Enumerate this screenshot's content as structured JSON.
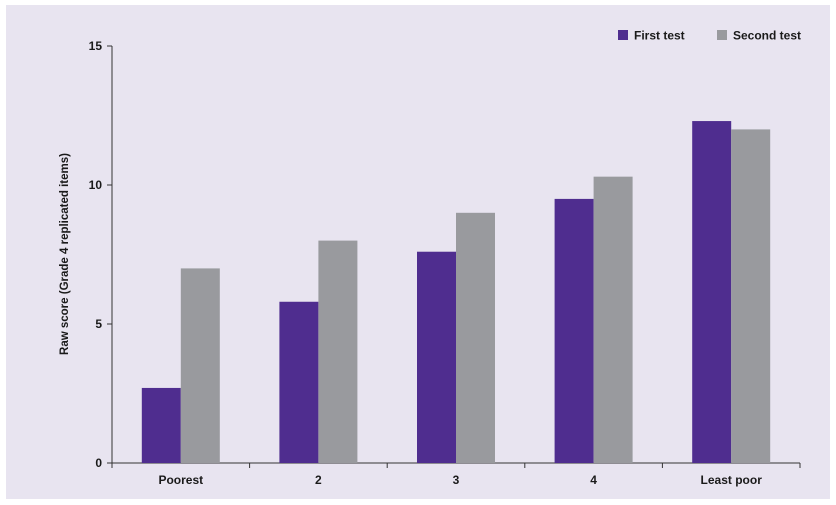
{
  "chart_data": {
    "type": "bar",
    "categories": [
      "Poorest",
      "2",
      "3",
      "4",
      "Least poor"
    ],
    "series": [
      {
        "name": "First test",
        "values": [
          2.7,
          5.8,
          7.6,
          9.5,
          12.3
        ],
        "color": "#4f2d8f"
      },
      {
        "name": "Second test",
        "values": [
          7.0,
          8.0,
          9.0,
          10.3,
          12.0
        ],
        "color": "#999a9e"
      }
    ],
    "title": "",
    "xlabel": "",
    "ylabel": "Raw score (Grade 4 replicated items)",
    "ylim": [
      0,
      15
    ],
    "yticks": [
      "0",
      "5",
      "10",
      "15"
    ],
    "grid": false,
    "legend_position": "top-right"
  }
}
